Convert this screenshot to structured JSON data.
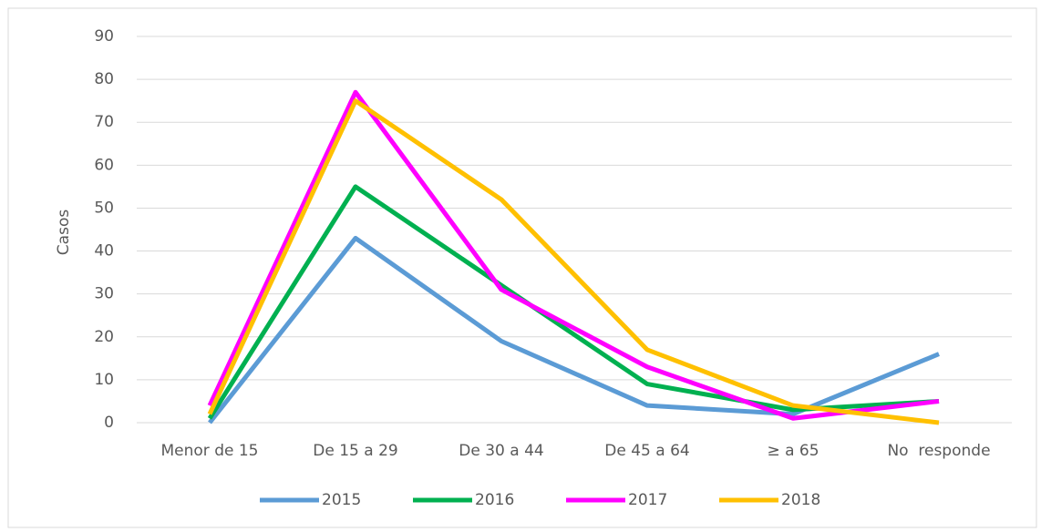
{
  "chart_data": {
    "type": "line",
    "ylabel": "Casos",
    "categories": [
      "Menor de 15",
      "De 15 a 29",
      "De 30 a 44",
      "De 45 a 64",
      "≥ a 65",
      "No  responde"
    ],
    "series": [
      {
        "name": "2015",
        "color": "#5b9bd5",
        "values": [
          0,
          43,
          19,
          4,
          2,
          16
        ]
      },
      {
        "name": "2016",
        "color": "#00b050",
        "values": [
          1,
          55,
          32,
          9,
          3,
          5
        ]
      },
      {
        "name": "2017",
        "color": "#ff00ff",
        "values": [
          4,
          77,
          31,
          13,
          1,
          5
        ]
      },
      {
        "name": "2018",
        "color": "#ffc000",
        "values": [
          2,
          75,
          52,
          17,
          4,
          0
        ]
      }
    ],
    "ylim": [
      0,
      90
    ],
    "yticks": [
      0,
      10,
      20,
      30,
      40,
      50,
      60,
      70,
      80,
      90
    ],
    "grid": true,
    "legend": "bottom"
  }
}
